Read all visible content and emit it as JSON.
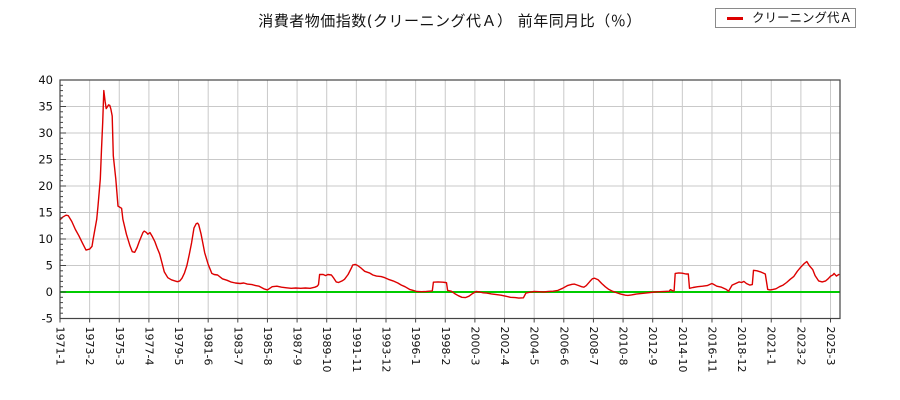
{
  "title": "消費者物価指数(クリーニング代Ａ） 前年同月比（％）",
  "legend": {
    "label": "クリーニング代Ａ"
  },
  "colors": {
    "series": "#dd0000",
    "zero_line": "#00cc00",
    "grid": "#c9c9c9",
    "axis": "#444444",
    "background": "#ffffff"
  },
  "chart_data": {
    "type": "line",
    "title": "消費者物価指数(クリーニング代Ａ） 前年同月比（％）",
    "xlabel": "",
    "ylabel": "",
    "grid": true,
    "legend_position": "top-right",
    "zero_line": true,
    "x_axis": {
      "start": "1971-1",
      "tick_interval_months": 25,
      "range_months": [
        0,
        658
      ],
      "tick_labels": [
        "1971-1",
        "1973-2",
        "1975-3",
        "1977-4",
        "1979-5",
        "1981-6",
        "1983-7",
        "1985-8",
        "1987-9",
        "1989-10",
        "1991-11",
        "1993-12",
        "1996-1",
        "1998-2",
        "2000-3",
        "2002-4",
        "2004-5",
        "2006-6",
        "2008-7",
        "2010-8",
        "2012-9",
        "2014-10",
        "2016-11",
        "2018-12",
        "2021-1",
        "2023-2",
        "2025-3"
      ]
    },
    "y_axis": {
      "range": [
        -5,
        40
      ],
      "ticks": [
        40,
        35,
        30,
        25,
        20,
        15,
        10,
        5,
        0,
        -5
      ],
      "minor_step": 1,
      "unit": "%"
    },
    "series": [
      {
        "name": "クリーニング代Ａ",
        "color": "#dd0000",
        "points": [
          [
            1971.0,
            13.6
          ],
          [
            1971.17,
            14.1
          ],
          [
            1971.42,
            14.5
          ],
          [
            1971.58,
            14.4
          ],
          [
            1971.83,
            13.3
          ],
          [
            1972.08,
            11.8
          ],
          [
            1972.33,
            10.6
          ],
          [
            1972.58,
            9.2
          ],
          [
            1972.83,
            7.9
          ],
          [
            1973.08,
            8.1
          ],
          [
            1973.25,
            8.6
          ],
          [
            1973.33,
            9.9
          ],
          [
            1973.58,
            13.7
          ],
          [
            1973.67,
            16.2
          ],
          [
            1973.83,
            21.3
          ],
          [
            1973.92,
            26.9
          ],
          [
            1974.0,
            32.0
          ],
          [
            1974.08,
            38.0
          ],
          [
            1974.17,
            36.0
          ],
          [
            1974.25,
            34.6
          ],
          [
            1974.42,
            35.3
          ],
          [
            1974.5,
            35.2
          ],
          [
            1974.58,
            34.5
          ],
          [
            1974.67,
            33.2
          ],
          [
            1974.75,
            25.7
          ],
          [
            1974.92,
            21.3
          ],
          [
            1975.0,
            18.8
          ],
          [
            1975.08,
            16.2
          ],
          [
            1975.33,
            15.8
          ],
          [
            1975.42,
            13.7
          ],
          [
            1975.67,
            10.9
          ],
          [
            1975.92,
            8.7
          ],
          [
            1976.08,
            7.6
          ],
          [
            1976.25,
            7.5
          ],
          [
            1976.42,
            8.4
          ],
          [
            1976.58,
            9.6
          ],
          [
            1976.83,
            11.2
          ],
          [
            1976.92,
            11.5
          ],
          [
            1977.08,
            11.2
          ],
          [
            1977.17,
            10.9
          ],
          [
            1977.33,
            11.2
          ],
          [
            1977.5,
            10.4
          ],
          [
            1977.67,
            9.5
          ],
          [
            1977.83,
            8.3
          ],
          [
            1978.0,
            7.2
          ],
          [
            1978.17,
            5.5
          ],
          [
            1978.33,
            3.8
          ],
          [
            1978.58,
            2.7
          ],
          [
            1978.83,
            2.3
          ],
          [
            1979.08,
            2.1
          ],
          [
            1979.25,
            1.95
          ],
          [
            1979.42,
            2.1
          ],
          [
            1979.58,
            2.6
          ],
          [
            1979.75,
            3.6
          ],
          [
            1979.92,
            5.0
          ],
          [
            1980.08,
            7.0
          ],
          [
            1980.25,
            9.3
          ],
          [
            1980.42,
            12.1
          ],
          [
            1980.58,
            12.9
          ],
          [
            1980.67,
            13.0
          ],
          [
            1980.75,
            12.7
          ],
          [
            1980.92,
            10.9
          ],
          [
            1981.17,
            7.4
          ],
          [
            1981.42,
            5.2
          ],
          [
            1981.67,
            3.5
          ],
          [
            1981.83,
            3.3
          ],
          [
            1982.08,
            3.2
          ],
          [
            1982.42,
            2.5
          ],
          [
            1982.75,
            2.2
          ],
          [
            1983.0,
            1.9
          ],
          [
            1983.33,
            1.7
          ],
          [
            1983.67,
            1.6
          ],
          [
            1983.92,
            1.7
          ],
          [
            1984.17,
            1.5
          ],
          [
            1984.5,
            1.4
          ],
          [
            1984.75,
            1.2
          ],
          [
            1985.0,
            1.1
          ],
          [
            1985.33,
            0.6
          ],
          [
            1985.58,
            0.4
          ],
          [
            1985.92,
            1.0
          ],
          [
            1986.25,
            1.1
          ],
          [
            1986.58,
            0.9
          ],
          [
            1986.92,
            0.8
          ],
          [
            1987.25,
            0.7
          ],
          [
            1987.58,
            0.75
          ],
          [
            1987.92,
            0.7
          ],
          [
            1988.25,
            0.75
          ],
          [
            1988.58,
            0.7
          ],
          [
            1988.92,
            0.9
          ],
          [
            1989.08,
            1.1
          ],
          [
            1989.17,
            1.4
          ],
          [
            1989.25,
            3.3
          ],
          [
            1989.5,
            3.3
          ],
          [
            1989.67,
            3.1
          ],
          [
            1989.83,
            3.3
          ],
          [
            1990.08,
            3.2
          ],
          [
            1990.25,
            2.6
          ],
          [
            1990.42,
            1.9
          ],
          [
            1990.58,
            1.8
          ],
          [
            1990.83,
            2.1
          ],
          [
            1991.0,
            2.4
          ],
          [
            1991.25,
            3.3
          ],
          [
            1991.5,
            4.6
          ],
          [
            1991.58,
            5.1
          ],
          [
            1991.75,
            5.2
          ],
          [
            1991.92,
            5.0
          ],
          [
            1992.17,
            4.5
          ],
          [
            1992.42,
            3.9
          ],
          [
            1992.75,
            3.6
          ],
          [
            1993.0,
            3.2
          ],
          [
            1993.25,
            3.0
          ],
          [
            1993.58,
            2.9
          ],
          [
            1993.83,
            2.7
          ],
          [
            1994.08,
            2.4
          ],
          [
            1994.42,
            2.1
          ],
          [
            1994.75,
            1.7
          ],
          [
            1995.0,
            1.3
          ],
          [
            1995.25,
            1.0
          ],
          [
            1995.58,
            0.5
          ],
          [
            1995.83,
            0.3
          ],
          [
            1996.08,
            0.1
          ],
          [
            1996.42,
            0.05
          ],
          [
            1996.75,
            0.1
          ],
          [
            1996.96,
            0.15
          ],
          [
            1997.17,
            0.2
          ],
          [
            1997.25,
            1.85
          ],
          [
            1997.58,
            1.9
          ],
          [
            1997.92,
            1.85
          ],
          [
            1998.08,
            1.8
          ],
          [
            1998.17,
            1.75
          ],
          [
            1998.25,
            0.3
          ],
          [
            1998.5,
            0.15
          ],
          [
            1998.75,
            -0.3
          ],
          [
            1999.0,
            -0.7
          ],
          [
            1999.25,
            -1.0
          ],
          [
            1999.5,
            -1.05
          ],
          [
            1999.75,
            -0.8
          ],
          [
            2000.0,
            -0.3
          ],
          [
            2000.25,
            0.1
          ],
          [
            2000.5,
            0.0
          ],
          [
            2000.75,
            -0.15
          ],
          [
            2001.0,
            -0.2
          ],
          [
            2001.33,
            -0.35
          ],
          [
            2001.67,
            -0.5
          ],
          [
            2002.0,
            -0.6
          ],
          [
            2002.33,
            -0.8
          ],
          [
            2002.67,
            -1.0
          ],
          [
            2003.0,
            -1.05
          ],
          [
            2003.25,
            -1.15
          ],
          [
            2003.58,
            -1.1
          ],
          [
            2003.75,
            -0.2
          ],
          [
            2004.0,
            -0.05
          ],
          [
            2004.33,
            0.1
          ],
          [
            2004.67,
            0.05
          ],
          [
            2005.0,
            0.0
          ],
          [
            2005.33,
            0.1
          ],
          [
            2005.67,
            0.15
          ],
          [
            2006.0,
            0.3
          ],
          [
            2006.33,
            0.7
          ],
          [
            2006.67,
            1.2
          ],
          [
            2007.0,
            1.45
          ],
          [
            2007.17,
            1.5
          ],
          [
            2007.42,
            1.25
          ],
          [
            2007.67,
            1.0
          ],
          [
            2007.83,
            0.9
          ],
          [
            2008.0,
            1.2
          ],
          [
            2008.25,
            2.0
          ],
          [
            2008.42,
            2.5
          ],
          [
            2008.58,
            2.6
          ],
          [
            2008.83,
            2.3
          ],
          [
            2009.08,
            1.6
          ],
          [
            2009.33,
            1.0
          ],
          [
            2009.58,
            0.5
          ],
          [
            2009.83,
            0.15
          ],
          [
            2010.08,
            -0.1
          ],
          [
            2010.42,
            -0.4
          ],
          [
            2010.75,
            -0.6
          ],
          [
            2010.92,
            -0.65
          ],
          [
            2011.17,
            -0.55
          ],
          [
            2011.5,
            -0.4
          ],
          [
            2011.83,
            -0.3
          ],
          [
            2012.17,
            -0.2
          ],
          [
            2012.5,
            -0.1
          ],
          [
            2012.83,
            0.0
          ],
          [
            2013.17,
            0.05
          ],
          [
            2013.5,
            0.1
          ],
          [
            2013.83,
            0.15
          ],
          [
            2013.92,
            0.45
          ],
          [
            2014.08,
            0.2
          ],
          [
            2014.17,
            0.2
          ],
          [
            2014.25,
            3.5
          ],
          [
            2014.5,
            3.6
          ],
          [
            2014.75,
            3.55
          ],
          [
            2015.0,
            3.4
          ],
          [
            2015.17,
            3.4
          ],
          [
            2015.25,
            0.7
          ],
          [
            2015.5,
            0.85
          ],
          [
            2015.83,
            1.0
          ],
          [
            2016.17,
            1.1
          ],
          [
            2016.5,
            1.2
          ],
          [
            2016.83,
            1.6
          ],
          [
            2016.92,
            1.5
          ],
          [
            2017.17,
            1.1
          ],
          [
            2017.5,
            0.9
          ],
          [
            2017.83,
            0.5
          ],
          [
            2018.0,
            0.15
          ],
          [
            2018.25,
            1.3
          ],
          [
            2018.5,
            1.6
          ],
          [
            2018.75,
            1.9
          ],
          [
            2018.92,
            1.8
          ],
          [
            2019.08,
            2.0
          ],
          [
            2019.25,
            1.6
          ],
          [
            2019.5,
            1.3
          ],
          [
            2019.67,
            1.4
          ],
          [
            2019.75,
            4.1
          ],
          [
            2020.0,
            4.0
          ],
          [
            2020.25,
            3.8
          ],
          [
            2020.58,
            3.4
          ],
          [
            2020.75,
            0.5
          ],
          [
            2020.92,
            0.4
          ],
          [
            2021.08,
            0.45
          ],
          [
            2021.33,
            0.6
          ],
          [
            2021.58,
            1.0
          ],
          [
            2021.83,
            1.3
          ],
          [
            2022.08,
            1.8
          ],
          [
            2022.33,
            2.4
          ],
          [
            2022.58,
            2.9
          ],
          [
            2022.83,
            3.9
          ],
          [
            2023.08,
            4.7
          ],
          [
            2023.33,
            5.4
          ],
          [
            2023.5,
            5.75
          ],
          [
            2023.67,
            5.0
          ],
          [
            2023.92,
            4.2
          ],
          [
            2024.08,
            3.1
          ],
          [
            2024.33,
            2.1
          ],
          [
            2024.58,
            1.9
          ],
          [
            2024.83,
            2.1
          ],
          [
            2025.0,
            2.5
          ],
          [
            2025.17,
            3.0
          ],
          [
            2025.33,
            3.2
          ],
          [
            2025.42,
            3.5
          ],
          [
            2025.58,
            3.0
          ],
          [
            2025.75,
            3.3
          ]
        ]
      }
    ]
  }
}
